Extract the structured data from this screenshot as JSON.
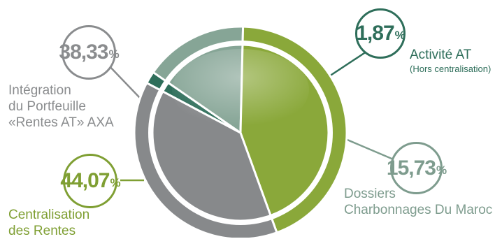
{
  "chart_data": {
    "type": "pie",
    "title": "",
    "slices": [
      {
        "value_label": "1,87",
        "unit": "%",
        "value": 1.87,
        "label_lines": [
          "Activité AT"
        ],
        "sub_label": "(Hors centralisation)",
        "color": "#2e6e5a"
      },
      {
        "value_label": "15,73",
        "unit": "%",
        "value": 15.73,
        "label_lines": [
          "Dossiers",
          "Charbonnages Du Maroc"
        ],
        "sub_label": "",
        "color": "#86a596"
      },
      {
        "value_label": "44,07",
        "unit": "%",
        "value": 44.07,
        "label_lines": [
          "Centralisation",
          "des Rentes"
        ],
        "sub_label": "",
        "color": "#8aa83a"
      },
      {
        "value_label": "38,33",
        "unit": "%",
        "value": 38.33,
        "label_lines": [
          "Intégration",
          "du Portfeuille",
          "«Rentes AT» AXA"
        ],
        "sub_label": "",
        "color": "#87898b"
      }
    ]
  },
  "colors": {
    "label_grey": "#8a8c8e",
    "label_green": "#7f9f33",
    "label_teal": "#2e6e5a",
    "label_sage": "#7e9c8e"
  }
}
